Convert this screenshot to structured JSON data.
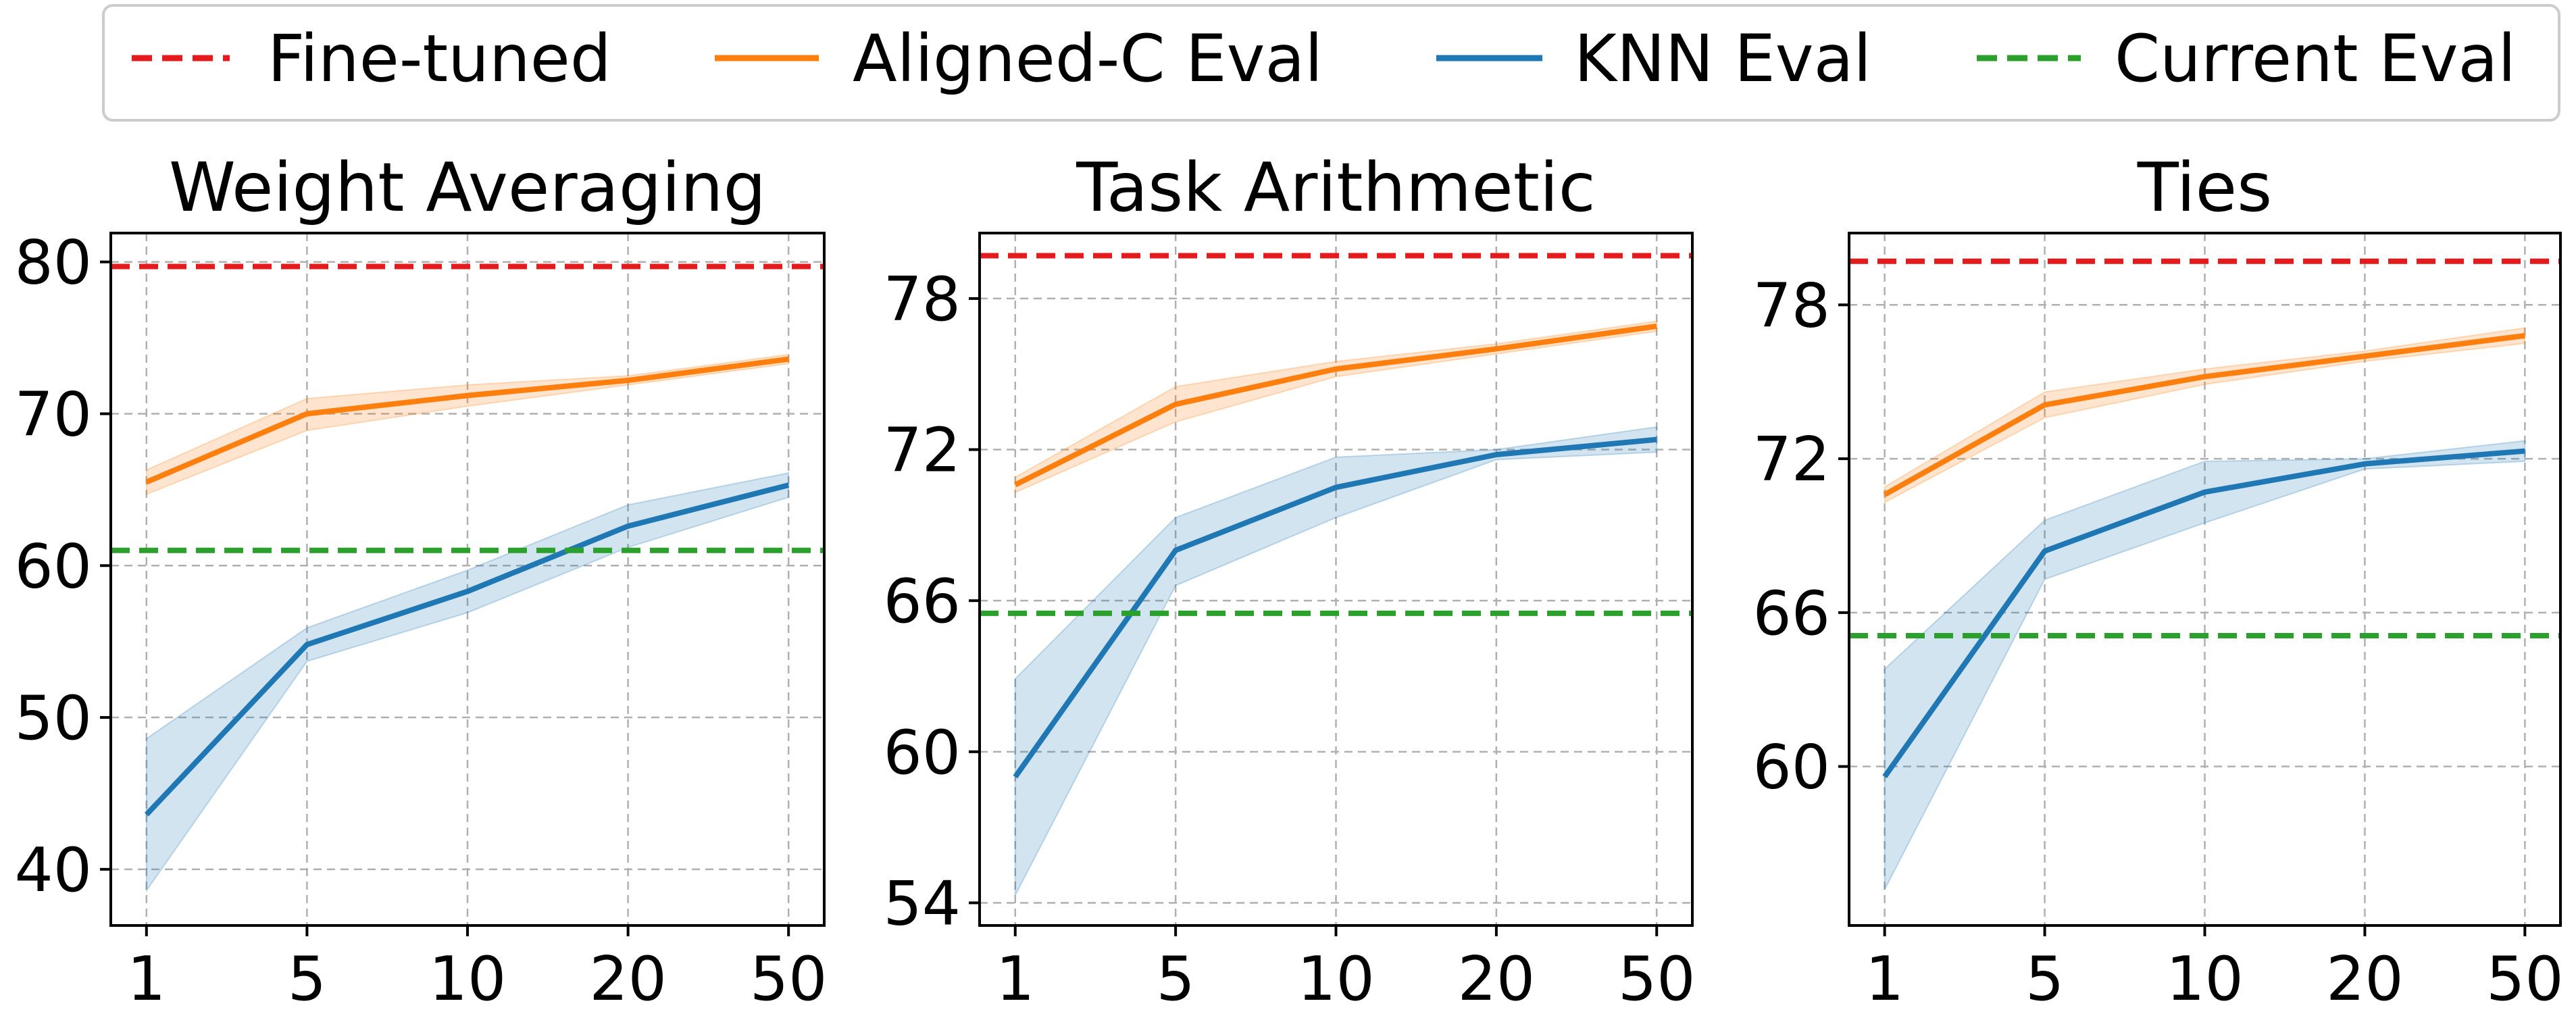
{
  "figure": {
    "legend": [
      {
        "label": "Fine-tuned",
        "color": "#e41a1c",
        "style": "dashed"
      },
      {
        "label": "Aligned-C Eval",
        "color": "#ff7f0e",
        "style": "solid"
      },
      {
        "label": "KNN Eval",
        "color": "#1f77b4",
        "style": "solid"
      },
      {
        "label": "Current Eval",
        "color": "#2ca02c",
        "style": "dashed"
      }
    ]
  },
  "chart_data": [
    {
      "type": "line",
      "title": "Weight Averaging",
      "xlabel": "",
      "ylabel": "",
      "categories": [
        "1",
        "5",
        "10",
        "20",
        "50"
      ],
      "yticks": [
        40,
        50,
        60,
        70,
        80
      ],
      "ylim": [
        36.3,
        81.9
      ],
      "grid": true,
      "series": [
        {
          "name": "Aligned-C Eval",
          "color": "#ff7f0e",
          "values": [
            65.5,
            70.0,
            71.2,
            72.2,
            73.6
          ],
          "lower": [
            64.7,
            68.9,
            70.5,
            71.9,
            73.3
          ],
          "upper": [
            66.3,
            71.0,
            71.9,
            72.5,
            73.9
          ]
        },
        {
          "name": "KNN Eval",
          "color": "#1f77b4",
          "values": [
            43.6,
            54.8,
            58.3,
            62.6,
            65.3
          ],
          "lower": [
            38.6,
            53.7,
            56.9,
            61.2,
            64.5
          ],
          "upper": [
            48.6,
            55.9,
            59.7,
            64.0,
            66.1
          ]
        }
      ],
      "reference_lines": [
        {
          "name": "Fine-tuned",
          "color": "#e41a1c",
          "value": 79.7
        },
        {
          "name": "Current Eval",
          "color": "#2ca02c",
          "value": 61.0
        }
      ]
    },
    {
      "type": "line",
      "title": "Task Arithmetic",
      "xlabel": "",
      "ylabel": "",
      "categories": [
        "1",
        "5",
        "10",
        "20",
        "50"
      ],
      "yticks": [
        54,
        60,
        66,
        72,
        78
      ],
      "ylim": [
        53.1,
        80.6
      ],
      "grid": true,
      "series": [
        {
          "name": "Aligned-C Eval",
          "color": "#ff7f0e",
          "values": [
            70.6,
            73.8,
            75.2,
            76.0,
            76.9
          ],
          "lower": [
            70.3,
            73.1,
            74.9,
            75.8,
            76.7
          ],
          "upper": [
            70.9,
            74.5,
            75.5,
            76.2,
            77.1
          ]
        },
        {
          "name": "KNN Eval",
          "color": "#1f77b4",
          "values": [
            59.0,
            68.0,
            70.5,
            71.8,
            72.4
          ],
          "lower": [
            54.3,
            66.6,
            69.3,
            71.6,
            71.9
          ],
          "upper": [
            62.9,
            69.3,
            71.7,
            72.0,
            72.9
          ]
        }
      ],
      "reference_lines": [
        {
          "name": "Fine-tuned",
          "color": "#e41a1c",
          "value": 79.7
        },
        {
          "name": "Current Eval",
          "color": "#2ca02c",
          "value": 65.5
        }
      ]
    },
    {
      "type": "line",
      "title": "Ties",
      "xlabel": "",
      "ylabel": "",
      "categories": [
        "1",
        "5",
        "10",
        "20",
        "50"
      ],
      "yticks": [
        60,
        66,
        72,
        78
      ],
      "ylim": [
        53.8,
        80.8
      ],
      "grid": true,
      "series": [
        {
          "name": "Aligned-C Eval",
          "color": "#ff7f0e",
          "values": [
            70.6,
            74.1,
            75.2,
            76.0,
            76.8
          ],
          "lower": [
            70.3,
            73.6,
            74.9,
            75.8,
            76.5
          ],
          "upper": [
            70.9,
            74.6,
            75.5,
            76.2,
            77.1
          ]
        },
        {
          "name": "KNN Eval",
          "color": "#1f77b4",
          "values": [
            59.6,
            68.4,
            70.7,
            71.8,
            72.3
          ],
          "lower": [
            55.2,
            67.3,
            69.5,
            71.6,
            71.9
          ],
          "upper": [
            63.8,
            69.6,
            71.9,
            72.0,
            72.7
          ]
        }
      ],
      "reference_lines": [
        {
          "name": "Fine-tuned",
          "color": "#e41a1c",
          "value": 79.7
        },
        {
          "name": "Current Eval",
          "color": "#2ca02c",
          "value": 65.1
        }
      ]
    }
  ]
}
